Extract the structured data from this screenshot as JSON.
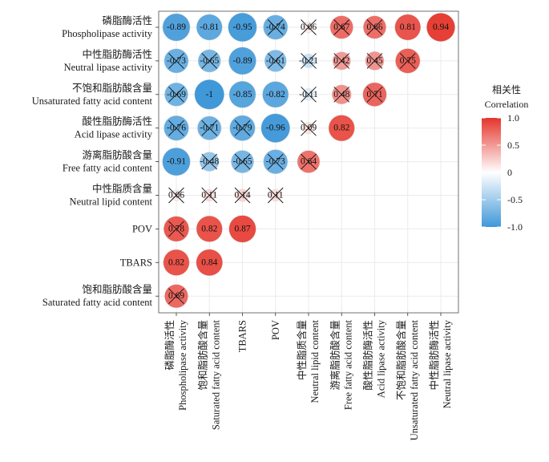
{
  "chart_data": {
    "type": "heatmap",
    "marker": "circle",
    "grid": true,
    "rows": [
      [
        "磷脂酶活性",
        "Phospholipase activity"
      ],
      [
        "中性脂肪酶活性",
        "Neutral lipase activity"
      ],
      [
        "不饱和脂肪酸含量",
        "Unsaturated fatty acid content"
      ],
      [
        "酸性脂肪酶活性",
        "Acid lipase activity"
      ],
      [
        "游离脂肪酸含量",
        "Free fatty acid content"
      ],
      [
        "中性脂质含量",
        "Neutral lipid content"
      ],
      [
        "POV"
      ],
      [
        "TBARS"
      ],
      [
        "饱和脂肪酸含量",
        "Saturated fatty acid content"
      ]
    ],
    "columns": [
      [
        "磷脂酶活性",
        "Phospholipase activity"
      ],
      [
        "饱和脂肪酸含量",
        "Saturated fatty acid content"
      ],
      [
        "TBARS"
      ],
      [
        "POV"
      ],
      [
        "中性脂质含量",
        "Neutral lipid content"
      ],
      [
        "游离脂肪酸含量",
        "Free fatty acid content"
      ],
      [
        "酸性脂肪酶活性",
        "Acid lipase activity"
      ],
      [
        "不饱和脂肪酸含量",
        "Unsaturated fatty acid content"
      ],
      [
        "中性脂肪酶活性",
        "Neutral lipase activity"
      ]
    ],
    "values": [
      [
        -0.89,
        -0.81,
        -0.95,
        -0.74,
        0.06,
        0.67,
        0.66,
        0.81,
        0.94
      ],
      [
        -0.73,
        -0.65,
        -0.89,
        -0.61,
        -0.21,
        0.42,
        0.45,
        0.75,
        null
      ],
      [
        -0.69,
        -1,
        -0.85,
        -0.82,
        -0.11,
        0.48,
        0.71,
        null,
        null
      ],
      [
        -0.76,
        -0.71,
        -0.79,
        -0.96,
        0.09,
        0.82,
        null,
        null,
        null
      ],
      [
        -0.91,
        -0.48,
        -0.65,
        -0.73,
        0.64,
        null,
        null,
        null,
        null
      ],
      [
        0.06,
        0.11,
        0.14,
        0.11,
        null,
        null,
        null,
        null,
        null
      ],
      [
        0.78,
        0.82,
        0.87,
        null,
        null,
        null,
        null,
        null,
        null
      ],
      [
        0.82,
        0.84,
        null,
        null,
        null,
        null,
        null,
        null,
        null
      ],
      [
        0.69,
        null,
        null,
        null,
        null,
        null,
        null,
        null,
        null
      ]
    ],
    "crossed": [
      [
        false,
        false,
        false,
        true,
        true,
        true,
        true,
        false,
        false
      ],
      [
        true,
        true,
        false,
        true,
        true,
        true,
        true,
        true,
        false
      ],
      [
        true,
        false,
        false,
        false,
        true,
        true,
        true,
        false,
        false
      ],
      [
        true,
        true,
        true,
        false,
        true,
        false,
        false,
        false,
        false
      ],
      [
        false,
        true,
        true,
        true,
        true,
        false,
        false,
        false,
        false
      ],
      [
        true,
        true,
        true,
        true,
        false,
        false,
        false,
        false,
        false
      ],
      [
        true,
        false,
        false,
        false,
        false,
        false,
        false,
        false,
        false
      ],
      [
        false,
        false,
        false,
        false,
        false,
        false,
        false,
        false,
        false
      ],
      [
        true,
        false,
        false,
        false,
        false,
        false,
        false,
        false,
        false
      ]
    ],
    "legend": {
      "title": [
        "相关性",
        "Correlation"
      ],
      "position": "right",
      "range": [
        -1,
        1
      ],
      "ticks": [
        {
          "value": 1,
          "label": "1.0"
        },
        {
          "value": 0.5,
          "label": "0.5"
        },
        {
          "value": 0,
          "label": "0"
        },
        {
          "value": -0.5,
          "label": "-0.5"
        },
        {
          "value": -1,
          "label": "-1.0"
        }
      ]
    },
    "colors": {
      "high": "#e5352b",
      "mid": "#ffffff",
      "low": "#3f98d8"
    }
  }
}
